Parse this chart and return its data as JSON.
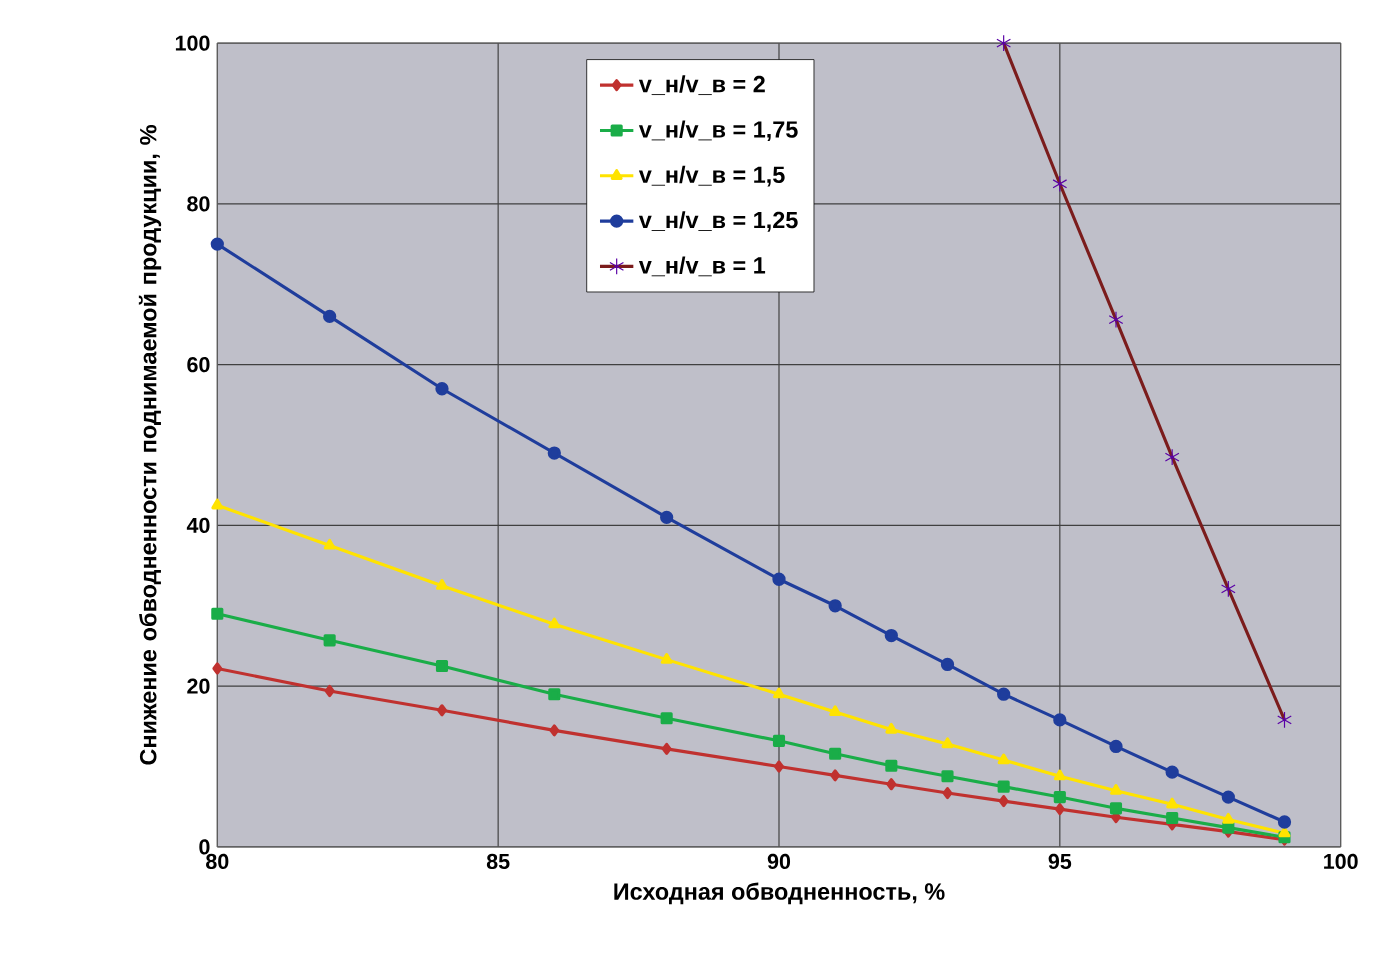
{
  "chart_data": {
    "type": "line",
    "xlabel": "Исходная обводненность, %",
    "ylabel": "Снижение обводненности поднимаемой продукции, %",
    "x": [
      80,
      82,
      84,
      86,
      88,
      90,
      91,
      92,
      93,
      94,
      95,
      96,
      97,
      98,
      99
    ],
    "xlim": [
      80,
      100
    ],
    "xticks": [
      80,
      85,
      90,
      95,
      100
    ],
    "ylim": [
      0,
      100
    ],
    "yticks": [
      0,
      20,
      40,
      60,
      80,
      100
    ],
    "grid": true,
    "legend": "top",
    "series": [
      {
        "name": "v_н/v_в = 2",
        "color": "#c0312f",
        "marker": "diamond",
        "values": [
          22.2,
          19.4,
          17,
          14.5,
          12.2,
          10,
          8.9,
          7.8,
          6.7,
          5.7,
          4.7,
          3.7,
          2.8,
          1.9,
          0.9
        ]
      },
      {
        "name": "v_н/v_в = 1,75",
        "color": "#1aad48",
        "marker": "square",
        "values": [
          29,
          25.7,
          22.5,
          19,
          16,
          13.2,
          11.6,
          10.1,
          8.8,
          7.5,
          6.2,
          4.8,
          3.6,
          2.4,
          1.2
        ]
      },
      {
        "name": "v_н/v_в = 1,5",
        "color": "#ffe300",
        "marker": "triangle",
        "values": [
          42.5,
          37.5,
          32.5,
          27.7,
          23.3,
          19,
          16.8,
          14.6,
          12.8,
          10.8,
          8.8,
          7,
          5.3,
          3.4,
          1.7
        ]
      },
      {
        "name": "v_н/v_в = 1,25",
        "color": "#1f3d9c",
        "marker": "circle",
        "values": [
          75,
          66,
          57,
          49,
          41,
          33.3,
          30,
          26.3,
          22.7,
          19,
          15.8,
          12.5,
          9.3,
          6.2,
          3.1
        ]
      },
      {
        "name": "v_н/v_в = 1",
        "color": "#7b1c1c",
        "marker": "cross",
        "x": [
          94,
          95,
          96,
          97,
          98,
          99
        ],
        "values": [
          100,
          82.5,
          65.6,
          48.5,
          32.1,
          15.8
        ]
      }
    ]
  }
}
